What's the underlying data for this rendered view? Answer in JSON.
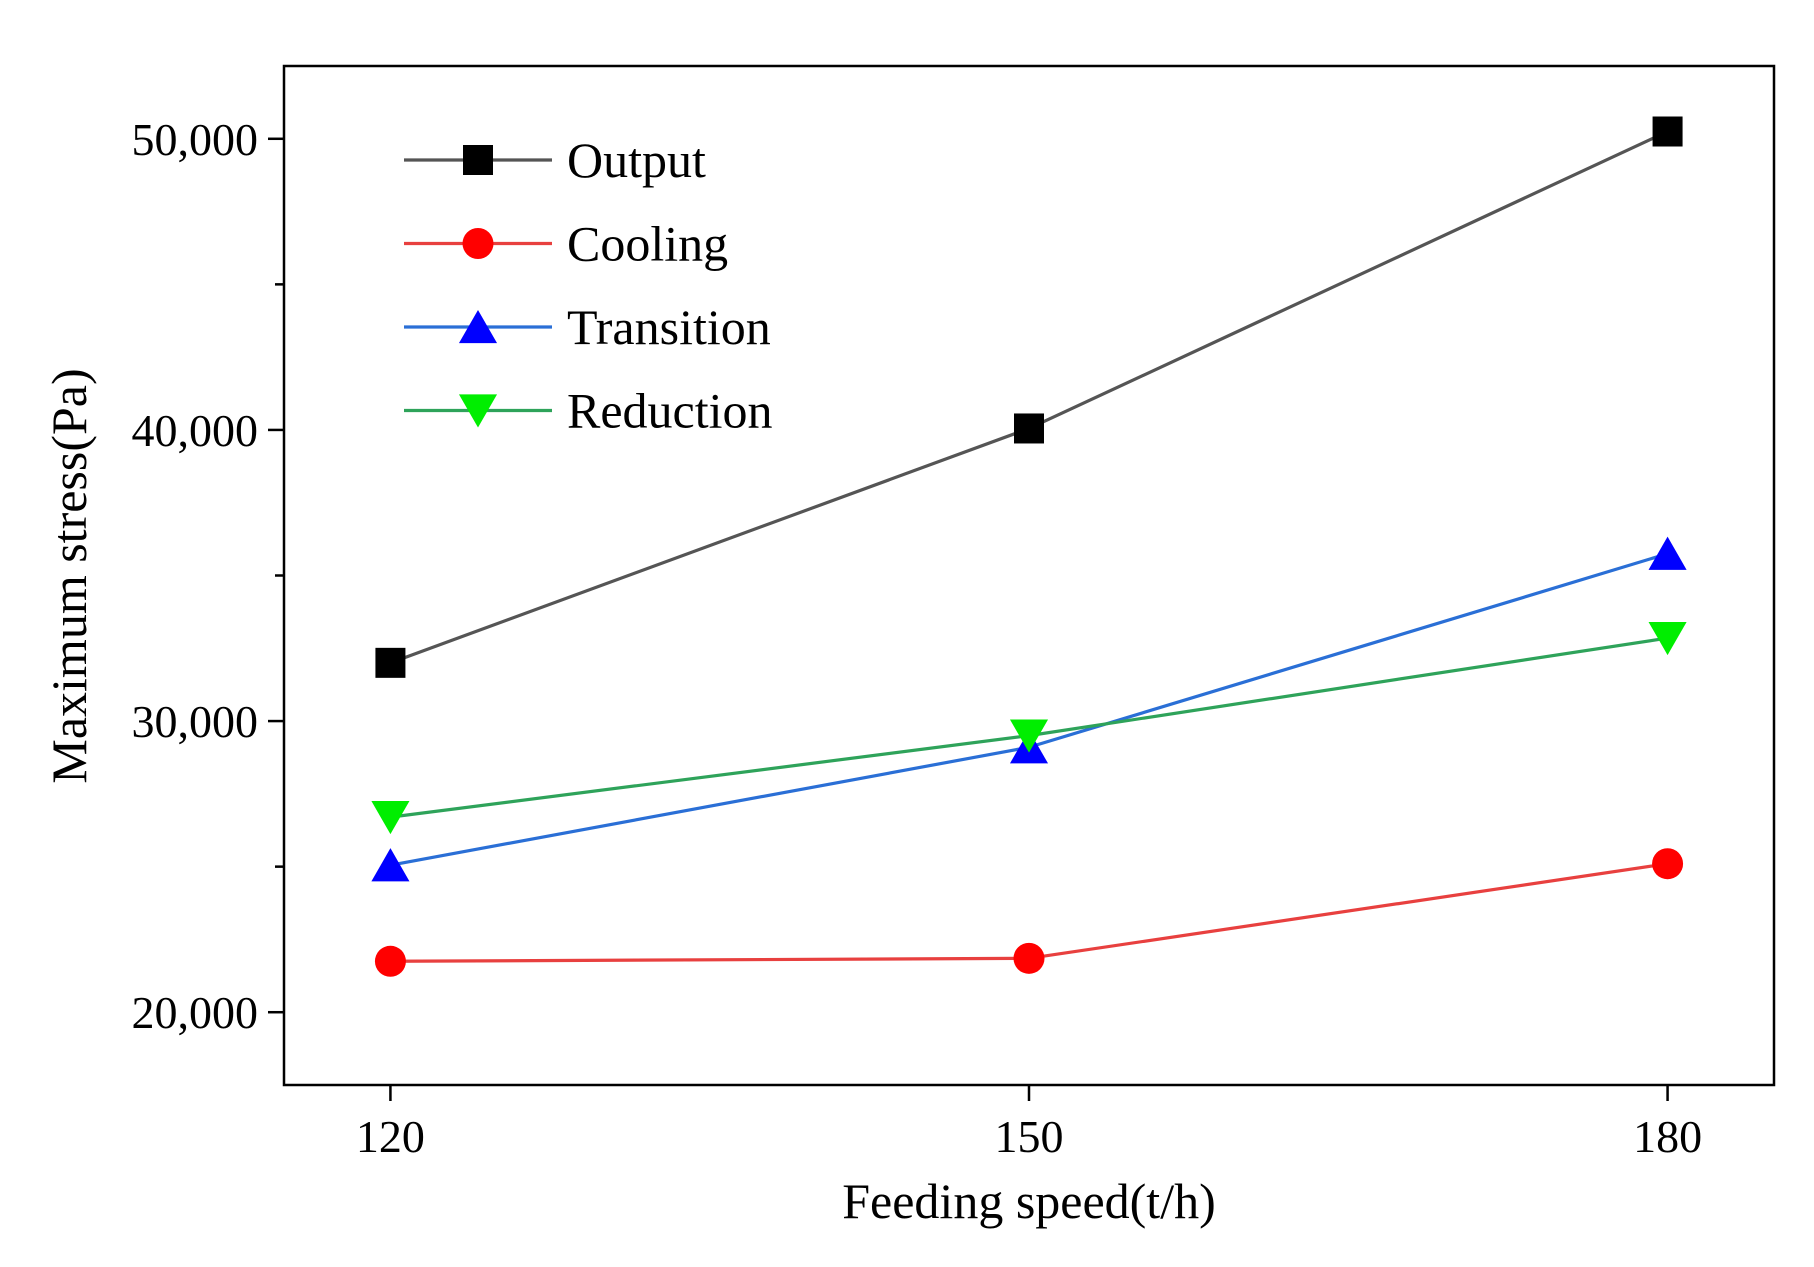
{
  "chart_data": {
    "type": "line",
    "title": "",
    "xlabel": "Feeding speed(t/h)",
    "ylabel": "Maximum stress(Pa)",
    "x": [
      120,
      150,
      180
    ],
    "x_tick_labels": [
      "120",
      "150",
      "180"
    ],
    "xlim": [
      115,
      185
    ],
    "ylim": [
      17500,
      52500
    ],
    "y_ticks": [
      20000,
      30000,
      40000,
      50000
    ],
    "y_tick_labels": [
      "20,000",
      "30,000",
      "40,000",
      "50,000"
    ],
    "y_minor_ticks": [
      25000,
      35000,
      45000
    ],
    "grid": false,
    "legend_position": "top-left",
    "series": [
      {
        "name": "Output",
        "color": "#555555",
        "marker_color": "#000000",
        "marker": "square",
        "values": [
          32000,
          40050,
          50250
        ]
      },
      {
        "name": "Cooling",
        "color": "#e8403f",
        "marker_color": "#ff0000",
        "marker": "circle",
        "values": [
          21750,
          21850,
          25100
        ]
      },
      {
        "name": "Transition",
        "color": "#2a6fd6",
        "marker_color": "#0000ff",
        "marker": "triangle-up",
        "values": [
          25050,
          29100,
          35750
        ]
      },
      {
        "name": "Reduction",
        "color": "#2ea35a",
        "marker_color": "#00ee00",
        "marker": "triangle-down",
        "values": [
          26700,
          29500,
          32850
        ]
      }
    ]
  }
}
